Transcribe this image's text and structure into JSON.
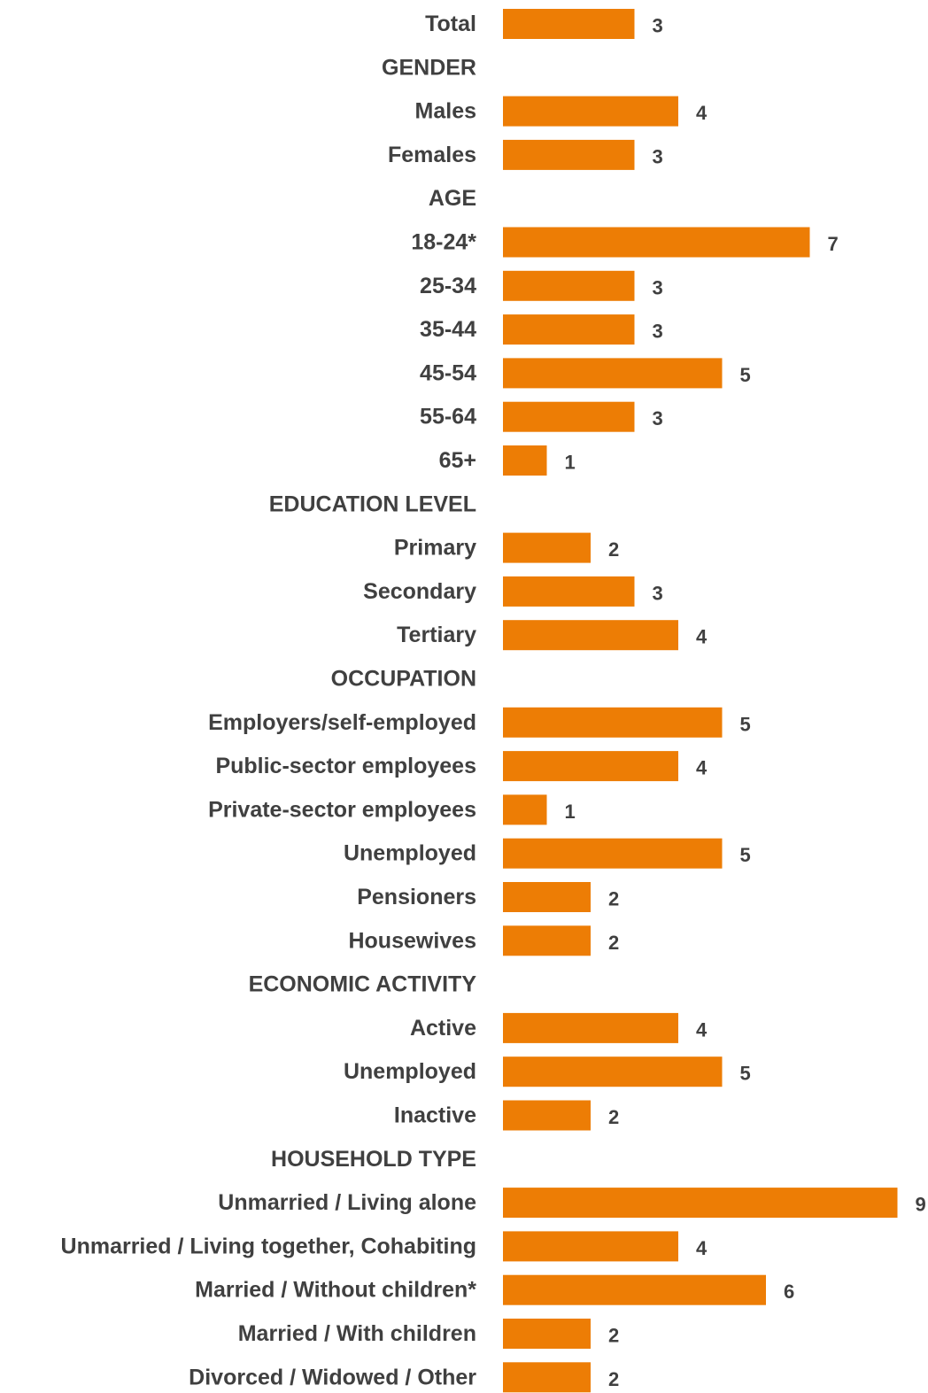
{
  "chart_data": {
    "type": "bar",
    "orientation": "horizontal",
    "bar_color": "#ED7D05",
    "text_color": "#404040",
    "title": "",
    "xlabel": "",
    "ylabel": "",
    "xlim": [
      0,
      9
    ],
    "grid": false,
    "rows": [
      {
        "label": "Total",
        "value": 3
      },
      {
        "label": "GENDER",
        "value": null
      },
      {
        "label": "Males",
        "value": 4
      },
      {
        "label": "Females",
        "value": 3
      },
      {
        "label": "AGE",
        "value": null
      },
      {
        "label": "18-24*",
        "value": 7
      },
      {
        "label": "25-34",
        "value": 3
      },
      {
        "label": "35-44",
        "value": 3
      },
      {
        "label": "45-54",
        "value": 5
      },
      {
        "label": "55-64",
        "value": 3
      },
      {
        "label": "65+",
        "value": 1
      },
      {
        "label": "EDUCATION LEVEL",
        "value": null
      },
      {
        "label": "Primary",
        "value": 2
      },
      {
        "label": "Secondary",
        "value": 3
      },
      {
        "label": "Tertiary",
        "value": 4
      },
      {
        "label": "OCCUPATION",
        "value": null
      },
      {
        "label": "Employers/self-employed",
        "value": 5
      },
      {
        "label": "Public-sector employees",
        "value": 4
      },
      {
        "label": "Private-sector employees",
        "value": 1
      },
      {
        "label": "Unemployed",
        "value": 5
      },
      {
        "label": "Pensioners",
        "value": 2
      },
      {
        "label": "Housewives",
        "value": 2
      },
      {
        "label": "ECONOMIC ACTIVITY",
        "value": null
      },
      {
        "label": "Active",
        "value": 4
      },
      {
        "label": "Unemployed",
        "value": 5
      },
      {
        "label": "Inactive",
        "value": 2
      },
      {
        "label": "HOUSEHOLD TYPE",
        "value": null
      },
      {
        "label": "Unmarried / Living alone",
        "value": 9
      },
      {
        "label": "Unmarried / Living together, Cohabiting",
        "value": 4
      },
      {
        "label": "Married / Without children*",
        "value": 6
      },
      {
        "label": "Married / With children",
        "value": 2
      },
      {
        "label": "Divorced / Widowed / Other",
        "value": 2
      }
    ]
  }
}
